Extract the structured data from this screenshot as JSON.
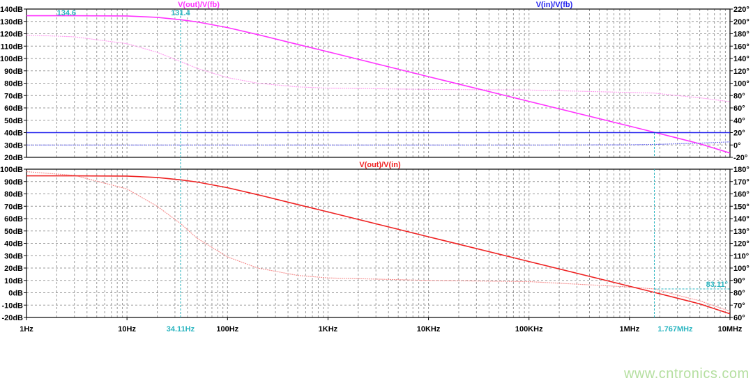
{
  "colors": {
    "loop": "#ff33ff",
    "loop_phase": "#ff99f0",
    "input": "#2222ee",
    "input_phase": "#6f6ff0",
    "closed": "#ee2222",
    "closed_phase": "#f58c8c",
    "cursor": "#2ab5c0",
    "grid": "#999999",
    "watermark": "#b5dfa0"
  },
  "watermark": "www.cntronics.com",
  "chart_data": [
    {
      "type": "line",
      "panel": "top",
      "x_scale": "log",
      "xlim": [
        1,
        10000000
      ],
      "ylim_left": [
        20,
        140
      ],
      "ylim_right": [
        -20,
        220
      ],
      "grid": true,
      "titles": [
        {
          "text": "V(out)/V(fb)",
          "color": "#ff33ff"
        },
        {
          "text": "V(in)/V(fb)",
          "color": "#2222ee"
        }
      ],
      "left_ticks": [
        "140dB",
        "130dB",
        "120dB",
        "110dB",
        "100dB",
        "90dB",
        "80dB",
        "70dB",
        "60dB",
        "50dB",
        "40dB",
        "30dB",
        "20dB"
      ],
      "right_ticks": [
        "220°",
        "200°",
        "180°",
        "160°",
        "140°",
        "120°",
        "100°",
        "80°",
        "60°",
        "40°",
        "20°",
        "0°",
        "-20°"
      ],
      "x": [
        1,
        3,
        10,
        20,
        34.11,
        50,
        100,
        200,
        500,
        1000,
        10000,
        100000,
        1000000,
        1767000,
        3000000,
        5000000,
        10000000
      ],
      "series": [
        {
          "name": "V(out)/V(fb)",
          "magnitude_db": [
            134.6,
            134.6,
            134.4,
            133.3,
            131.4,
            129.6,
            125.0,
            119.3,
            111.4,
            105.4,
            85.3,
            65.3,
            45.3,
            40.3,
            35.6,
            31.0,
            23.5
          ],
          "phase_deg": [
            178,
            175,
            164,
            150,
            135,
            124,
            109,
            100,
            94,
            92,
            90,
            89,
            85,
            84,
            80,
            76.5,
            70
          ]
        },
        {
          "name": "V(in)/V(fb)",
          "magnitude_db": [
            40,
            40,
            40,
            40,
            40,
            40,
            40,
            40,
            40,
            40,
            40,
            40,
            40,
            40,
            40,
            40,
            40
          ],
          "phase_deg": [
            0,
            0,
            0,
            0,
            0,
            0,
            0,
            0,
            0,
            0,
            0,
            0,
            0.3,
            0.9,
            2,
            3,
            5
          ]
        }
      ],
      "annotations": [
        {
          "x": 2.5,
          "label": "134.6"
        },
        {
          "x": 34.11,
          "label": "131.4"
        }
      ]
    },
    {
      "type": "line",
      "panel": "bottom",
      "x_scale": "log",
      "xlim": [
        1,
        10000000
      ],
      "ylim_left": [
        -20,
        100
      ],
      "ylim_right": [
        60,
        180
      ],
      "grid": true,
      "titles": [
        {
          "text": "V(out)/V(in)",
          "color": "#ee2222"
        }
      ],
      "left_ticks": [
        "100dB",
        "90dB",
        "80dB",
        "70dB",
        "60dB",
        "50dB",
        "40dB",
        "30dB",
        "20dB",
        "10dB",
        "0dB",
        "-10dB",
        "-20dB"
      ],
      "right_ticks": [
        "180°",
        "170°",
        "160°",
        "150°",
        "140°",
        "130°",
        "120°",
        "110°",
        "100°",
        "90°",
        "80°",
        "70°",
        "60°"
      ],
      "x_ticks": [
        "1Hz",
        "10Hz",
        "100Hz",
        "1KHz",
        "10KHz",
        "100KHz",
        "1MHz",
        "10MHz"
      ],
      "x": [
        1,
        3,
        10,
        20,
        34.11,
        50,
        100,
        200,
        500,
        1000,
        10000,
        100000,
        1000000,
        1767000,
        3000000,
        5000000,
        10000000
      ],
      "series": [
        {
          "name": "V(out)/V(in)",
          "magnitude_db": [
            94.6,
            94.6,
            94.4,
            93.3,
            91.4,
            89.6,
            85.0,
            79.3,
            71.4,
            65.4,
            45.3,
            25.3,
            5.3,
            0.3,
            -4.4,
            -9.0,
            -17.0
          ],
          "phase_deg": [
            178,
            175,
            164,
            150,
            136,
            124,
            109,
            100,
            94,
            92,
            90,
            89,
            84.7,
            83.11,
            78,
            73.5,
            65
          ]
        }
      ],
      "cursors": [
        {
          "x": 34.11,
          "label": "34.11Hz"
        },
        {
          "x": 1767000,
          "label": "1.767MHz",
          "phase_label": "83.11°",
          "phase": 83.11
        }
      ]
    }
  ]
}
